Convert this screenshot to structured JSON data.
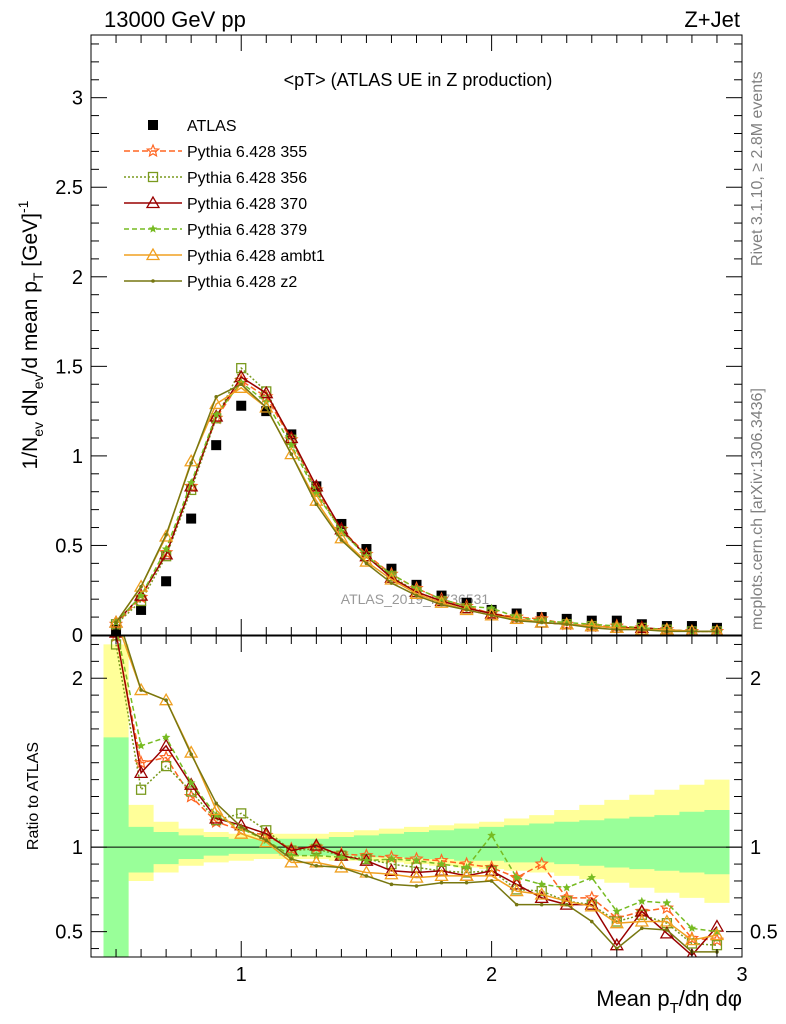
{
  "header": {
    "left": "13000 GeV pp",
    "right": "Z+Jet"
  },
  "plot_title": "<pT> (ATLAS UE in Z production)",
  "side_labels": {
    "rivet": "Rivet 3.1.10, ≥ 2.8M events",
    "mcplots": "mcplots.cern.ch [arXiv:1306.3436]"
  },
  "watermark": "ATLAS_2019_I1736531",
  "chart_data": [
    {
      "type": "line",
      "panel": "main",
      "ylabel": "1/N_ev dN_ev/d mean p_T [GeV]^-1",
      "xlim": [
        0.4,
        3.0
      ],
      "ylim": [
        0,
        3.35
      ],
      "y_ticks": [
        0,
        0.5,
        1,
        1.5,
        2,
        2.5,
        3
      ],
      "x": [
        0.5,
        0.6,
        0.7,
        0.8,
        0.9,
        1.0,
        1.1,
        1.2,
        1.3,
        1.4,
        1.5,
        1.6,
        1.7,
        1.8,
        1.9,
        2.0,
        2.1,
        2.2,
        2.3,
        2.4,
        2.5,
        2.6,
        2.7,
        2.8,
        2.9
      ],
      "series": [
        {
          "name": "ATLAS",
          "color": "#000000",
          "marker": "square",
          "dash": "none",
          "values": [
            0.03,
            0.14,
            0.3,
            0.65,
            1.06,
            1.28,
            1.25,
            1.12,
            0.83,
            0.62,
            0.48,
            0.37,
            0.28,
            0.22,
            0.18,
            0.14,
            0.12,
            0.1,
            0.09,
            0.08,
            0.08,
            0.06,
            0.05,
            0.05,
            0.04
          ]
        },
        {
          "name": "Pythia 6.428 355",
          "color": "#ff6622",
          "marker": "star-open",
          "dash": "6,3",
          "values": [
            0.06,
            0.21,
            0.46,
            0.83,
            1.21,
            1.42,
            1.33,
            1.09,
            0.81,
            0.59,
            0.45,
            0.34,
            0.26,
            0.2,
            0.16,
            0.12,
            0.1,
            0.09,
            0.06,
            0.05,
            0.05,
            0.04,
            0.03,
            0.02,
            0.02
          ]
        },
        {
          "name": "Pythia 6.428 356",
          "color": "#7a9a1e",
          "marker": "square-open",
          "dash": "2,2",
          "values": [
            0.06,
            0.19,
            0.44,
            0.81,
            1.21,
            1.49,
            1.36,
            1.09,
            0.8,
            0.58,
            0.44,
            0.33,
            0.24,
            0.19,
            0.15,
            0.12,
            0.09,
            0.07,
            0.06,
            0.05,
            0.04,
            0.04,
            0.03,
            0.02,
            0.02
          ]
        },
        {
          "name": "Pythia 6.428 370",
          "color": "#990000",
          "marker": "triangle-open",
          "dash": "none",
          "values": [
            0.07,
            0.22,
            0.45,
            0.83,
            1.22,
            1.44,
            1.35,
            1.1,
            0.83,
            0.59,
            0.44,
            0.32,
            0.24,
            0.19,
            0.15,
            0.12,
            0.09,
            0.07,
            0.06,
            0.05,
            0.04,
            0.04,
            0.03,
            0.02,
            0.02
          ]
        },
        {
          "name": "Pythia 6.428 379",
          "color": "#77bb22",
          "marker": "star",
          "dash": "5,3",
          "values": [
            0.07,
            0.22,
            0.48,
            0.85,
            1.23,
            1.41,
            1.3,
            1.06,
            0.79,
            0.58,
            0.44,
            0.34,
            0.26,
            0.2,
            0.16,
            0.15,
            0.1,
            0.08,
            0.07,
            0.06,
            0.05,
            0.04,
            0.03,
            0.02,
            0.02
          ]
        },
        {
          "name": "Pythia 6.428 ambt1",
          "color": "#f0a020",
          "marker": "triangle-open",
          "dash": "none",
          "values": [
            0.07,
            0.27,
            0.55,
            0.97,
            1.29,
            1.38,
            1.27,
            1.01,
            0.75,
            0.54,
            0.41,
            0.31,
            0.23,
            0.18,
            0.14,
            0.11,
            0.09,
            0.07,
            0.06,
            0.05,
            0.04,
            0.03,
            0.03,
            0.02,
            0.02
          ]
        },
        {
          "name": "Pythia 6.428 z2",
          "color": "#777711",
          "marker": "dot",
          "dash": "none",
          "values": [
            0.07,
            0.27,
            0.56,
            0.96,
            1.33,
            1.4,
            1.27,
            1.01,
            0.73,
            0.53,
            0.4,
            0.29,
            0.22,
            0.17,
            0.14,
            0.11,
            0.08,
            0.07,
            0.06,
            0.04,
            0.03,
            0.03,
            0.02,
            0.02,
            0.02
          ]
        }
      ]
    },
    {
      "type": "line",
      "panel": "ratio",
      "ylabel": "Ratio to ATLAS",
      "xlabel": "Mean p_T/dη dφ",
      "xlim": [
        0.4,
        3.0
      ],
      "ylim": [
        0.35,
        2.25
      ],
      "x_ticks": [
        1,
        2,
        3
      ],
      "y_ticks": [
        0.5,
        1,
        2
      ],
      "x": [
        0.5,
        0.6,
        0.7,
        0.8,
        0.9,
        1.0,
        1.1,
        1.2,
        1.3,
        1.4,
        1.5,
        1.6,
        1.7,
        1.8,
        1.9,
        2.0,
        2.1,
        2.2,
        2.3,
        2.4,
        2.5,
        2.6,
        2.7,
        2.8,
        2.9
      ],
      "band_stat": {
        "lo": [
          0.3,
          0.85,
          0.9,
          0.93,
          0.95,
          0.96,
          0.96,
          0.95,
          0.95,
          0.95,
          0.94,
          0.94,
          0.93,
          0.93,
          0.92,
          0.92,
          0.91,
          0.91,
          0.9,
          0.89,
          0.88,
          0.87,
          0.86,
          0.85,
          0.84
        ],
        "hi": [
          1.65,
          1.12,
          1.09,
          1.07,
          1.06,
          1.05,
          1.05,
          1.05,
          1.05,
          1.06,
          1.07,
          1.08,
          1.09,
          1.1,
          1.11,
          1.12,
          1.13,
          1.14,
          1.15,
          1.16,
          1.17,
          1.18,
          1.19,
          1.21,
          1.22
        ]
      },
      "band_total": {
        "lo": [
          0.3,
          0.8,
          0.85,
          0.89,
          0.91,
          0.92,
          0.93,
          0.93,
          0.93,
          0.92,
          0.92,
          0.91,
          0.9,
          0.89,
          0.88,
          0.87,
          0.86,
          0.85,
          0.83,
          0.81,
          0.79,
          0.76,
          0.73,
          0.7,
          0.67
        ],
        "hi": [
          2.2,
          1.25,
          1.15,
          1.11,
          1.09,
          1.08,
          1.08,
          1.08,
          1.08,
          1.09,
          1.1,
          1.11,
          1.12,
          1.13,
          1.14,
          1.15,
          1.17,
          1.19,
          1.22,
          1.25,
          1.28,
          1.31,
          1.34,
          1.37,
          1.4
        ]
      },
      "series": [
        {
          "name": "Pythia 6.428 355",
          "color": "#ff6622",
          "marker": "star-open",
          "dash": "6,3",
          "values": [
            2.25,
            1.5,
            1.53,
            1.3,
            1.15,
            1.1,
            1.07,
            0.99,
            1.0,
            0.96,
            0.95,
            0.94,
            0.93,
            0.92,
            0.9,
            0.88,
            0.82,
            0.9,
            0.7,
            0.7,
            0.58,
            0.62,
            0.64,
            0.46,
            0.45
          ]
        },
        {
          "name": "Pythia 6.428 356",
          "color": "#7a9a1e",
          "marker": "square-open",
          "dash": "2,2",
          "values": [
            2.2,
            1.34,
            1.48,
            1.33,
            1.16,
            1.2,
            1.1,
            0.98,
            0.99,
            0.95,
            0.93,
            0.9,
            0.88,
            0.86,
            0.85,
            0.86,
            0.75,
            0.74,
            0.68,
            0.66,
            0.56,
            0.6,
            0.55,
            0.43,
            0.42
          ]
        },
        {
          "name": "Pythia 6.428 370",
          "color": "#990000",
          "marker": "triangle-open",
          "dash": "none",
          "values": [
            2.27,
            1.44,
            1.6,
            1.37,
            1.17,
            1.13,
            1.08,
            0.98,
            1.01,
            0.95,
            0.92,
            0.86,
            0.85,
            0.86,
            0.83,
            0.86,
            0.78,
            0.7,
            0.66,
            0.66,
            0.42,
            0.62,
            0.49,
            0.36,
            0.53
          ]
        },
        {
          "name": "Pythia 6.428 379",
          "color": "#77bb22",
          "marker": "star",
          "dash": "5,3",
          "values": [
            2.3,
            1.6,
            1.65,
            1.38,
            1.19,
            1.11,
            1.04,
            0.95,
            0.95,
            0.94,
            0.92,
            0.93,
            0.92,
            0.9,
            0.88,
            1.07,
            0.82,
            0.78,
            0.76,
            0.82,
            0.62,
            0.68,
            0.67,
            0.52,
            0.5
          ]
        },
        {
          "name": "Pythia 6.428 ambt1",
          "color": "#f0a020",
          "marker": "triangle-open",
          "dash": "none",
          "values": [
            2.35,
            1.93,
            1.87,
            1.56,
            1.22,
            1.08,
            1.03,
            0.91,
            0.91,
            0.88,
            0.85,
            0.84,
            0.82,
            0.83,
            0.83,
            0.83,
            0.74,
            0.72,
            0.68,
            0.65,
            0.55,
            0.56,
            0.56,
            0.45,
            0.48
          ]
        },
        {
          "name": "Pythia 6.428 z2",
          "color": "#777711",
          "marker": "dot",
          "dash": "none",
          "values": [
            2.4,
            1.93,
            1.87,
            1.55,
            1.26,
            1.12,
            1.04,
            0.93,
            0.89,
            0.88,
            0.83,
            0.78,
            0.77,
            0.79,
            0.79,
            0.8,
            0.66,
            0.66,
            0.66,
            0.56,
            0.4,
            0.52,
            0.51,
            0.38,
            0.38
          ]
        }
      ]
    }
  ]
}
